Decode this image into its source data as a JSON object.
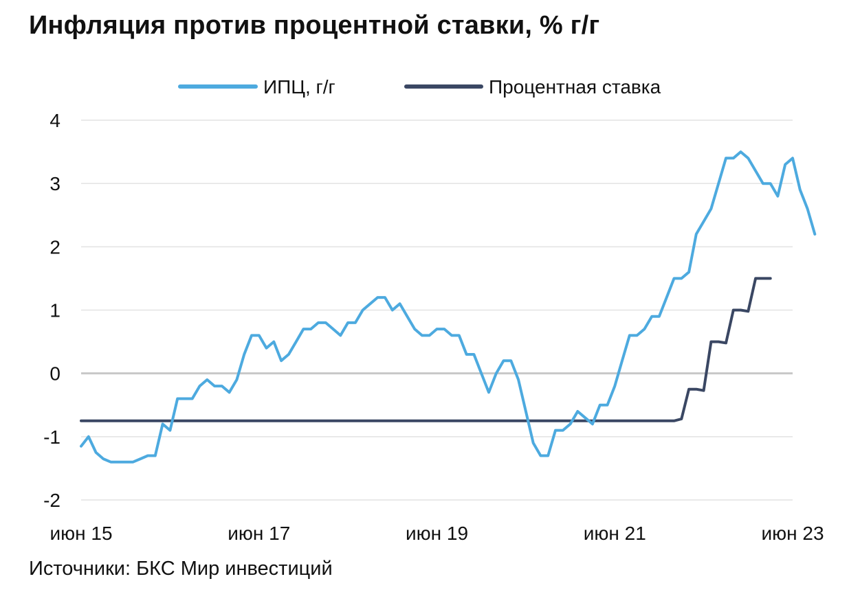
{
  "title": "Инфляция против процентной ставки, % г/г",
  "source": "Источники: БКС Мир инвестиций",
  "chart_data": {
    "type": "line",
    "title": "Инфляция против процентной ставки, % г/г",
    "xlabel": "",
    "ylabel": "",
    "ylim": [
      -2,
      4
    ],
    "yticks": [
      4,
      3,
      2,
      1,
      0,
      -1,
      -2
    ],
    "xlim": [
      "2015-06",
      "2023-06"
    ],
    "xticks": [
      {
        "x": "2015-06",
        "label": "июн 15"
      },
      {
        "x": "2017-06",
        "label": "июн 17"
      },
      {
        "x": "2019-06",
        "label": "июн 19"
      },
      {
        "x": "2021-06",
        "label": "июн 21"
      },
      {
        "x": "2023-06",
        "label": "июн 23"
      }
    ],
    "grid": true,
    "legend_position": "top-center",
    "series": [
      {
        "name": "ИПЦ, г/г",
        "color": "#4DAADF",
        "points": [
          [
            "2015-06",
            -1.15
          ],
          [
            "2015-07",
            -1.0
          ],
          [
            "2015-08",
            -1.25
          ],
          [
            "2015-09",
            -1.35
          ],
          [
            "2015-10",
            -1.4
          ],
          [
            "2015-11",
            -1.4
          ],
          [
            "2015-12",
            -1.4
          ],
          [
            "2016-01",
            -1.4
          ],
          [
            "2016-02",
            -1.35
          ],
          [
            "2016-03",
            -1.3
          ],
          [
            "2016-04",
            -1.3
          ],
          [
            "2016-05",
            -0.8
          ],
          [
            "2016-06",
            -0.9
          ],
          [
            "2016-07",
            -0.4
          ],
          [
            "2016-08",
            -0.4
          ],
          [
            "2016-09",
            -0.4
          ],
          [
            "2016-10",
            -0.2
          ],
          [
            "2016-11",
            -0.1
          ],
          [
            "2016-12",
            -0.2
          ],
          [
            "2017-01",
            -0.2
          ],
          [
            "2017-02",
            -0.3
          ],
          [
            "2017-03",
            -0.1
          ],
          [
            "2017-04",
            0.3
          ],
          [
            "2017-05",
            0.6
          ],
          [
            "2017-06",
            0.6
          ],
          [
            "2017-07",
            0.4
          ],
          [
            "2017-08",
            0.5
          ],
          [
            "2017-09",
            0.2
          ],
          [
            "2017-10",
            0.3
          ],
          [
            "2017-11",
            0.5
          ],
          [
            "2017-12",
            0.7
          ],
          [
            "2018-01",
            0.7
          ],
          [
            "2018-02",
            0.8
          ],
          [
            "2018-03",
            0.8
          ],
          [
            "2018-04",
            0.7
          ],
          [
            "2018-05",
            0.6
          ],
          [
            "2018-06",
            0.8
          ],
          [
            "2018-07",
            0.8
          ],
          [
            "2018-08",
            1.0
          ],
          [
            "2018-09",
            1.1
          ],
          [
            "2018-10",
            1.2
          ],
          [
            "2018-11",
            1.2
          ],
          [
            "2018-12",
            1.0
          ],
          [
            "2019-01",
            1.1
          ],
          [
            "2019-02",
            0.9
          ],
          [
            "2019-03",
            0.7
          ],
          [
            "2019-04",
            0.6
          ],
          [
            "2019-05",
            0.6
          ],
          [
            "2019-06",
            0.7
          ],
          [
            "2019-07",
            0.7
          ],
          [
            "2019-08",
            0.6
          ],
          [
            "2019-09",
            0.6
          ],
          [
            "2019-10",
            0.3
          ],
          [
            "2019-11",
            0.3
          ],
          [
            "2019-12",
            0.0
          ],
          [
            "2020-01",
            -0.3
          ],
          [
            "2020-02",
            0.0
          ],
          [
            "2020-03",
            0.2
          ],
          [
            "2020-04",
            0.2
          ],
          [
            "2020-05",
            -0.1
          ],
          [
            "2020-06",
            -0.6
          ],
          [
            "2020-07",
            -1.1
          ],
          [
            "2020-08",
            -1.3
          ],
          [
            "2020-09",
            -1.3
          ],
          [
            "2020-10",
            -0.9
          ],
          [
            "2020-11",
            -0.9
          ],
          [
            "2020-12",
            -0.8
          ],
          [
            "2021-01",
            -0.6
          ],
          [
            "2021-02",
            -0.7
          ],
          [
            "2021-03",
            -0.8
          ],
          [
            "2021-04",
            -0.5
          ],
          [
            "2021-05",
            -0.5
          ],
          [
            "2021-06",
            -0.2
          ],
          [
            "2021-07",
            0.2
          ],
          [
            "2021-08",
            0.6
          ],
          [
            "2021-09",
            0.6
          ],
          [
            "2021-10",
            0.7
          ],
          [
            "2021-11",
            0.9
          ],
          [
            "2021-12",
            0.9
          ],
          [
            "2022-01",
            1.2
          ],
          [
            "2022-02",
            1.5
          ],
          [
            "2022-03",
            1.5
          ],
          [
            "2022-04",
            1.6
          ],
          [
            "2022-05",
            2.2
          ],
          [
            "2022-06",
            2.4
          ],
          [
            "2022-07",
            2.6
          ],
          [
            "2022-08",
            3.0
          ],
          [
            "2022-09",
            3.4
          ],
          [
            "2022-10",
            3.4
          ],
          [
            "2022-11",
            3.5
          ],
          [
            "2022-12",
            3.4
          ],
          [
            "2023-01",
            3.2
          ],
          [
            "2023-02",
            3.0
          ],
          [
            "2023-03",
            3.0
          ],
          [
            "2023-04",
            2.8
          ],
          [
            "2023-05",
            3.3
          ],
          [
            "2023-06",
            3.4
          ],
          [
            "2023-07",
            2.9
          ],
          [
            "2023-08",
            2.6
          ],
          [
            "2023-09",
            2.2
          ]
        ]
      },
      {
        "name": "Процентная ставка",
        "color": "#3A4763",
        "points": [
          [
            "2015-06",
            -0.75
          ],
          [
            "2022-02",
            -0.75
          ],
          [
            "2022-03",
            -0.72
          ],
          [
            "2022-04",
            -0.25
          ],
          [
            "2022-05",
            -0.25
          ],
          [
            "2022-06",
            -0.27
          ],
          [
            "2022-07",
            0.5
          ],
          [
            "2022-08",
            0.5
          ],
          [
            "2022-09",
            0.48
          ],
          [
            "2022-10",
            1.0
          ],
          [
            "2022-11",
            1.0
          ],
          [
            "2022-12",
            0.98
          ],
          [
            "2023-01",
            1.5
          ],
          [
            "2023-02",
            1.5
          ],
          [
            "2023-03",
            1.5
          ]
        ]
      }
    ]
  }
}
